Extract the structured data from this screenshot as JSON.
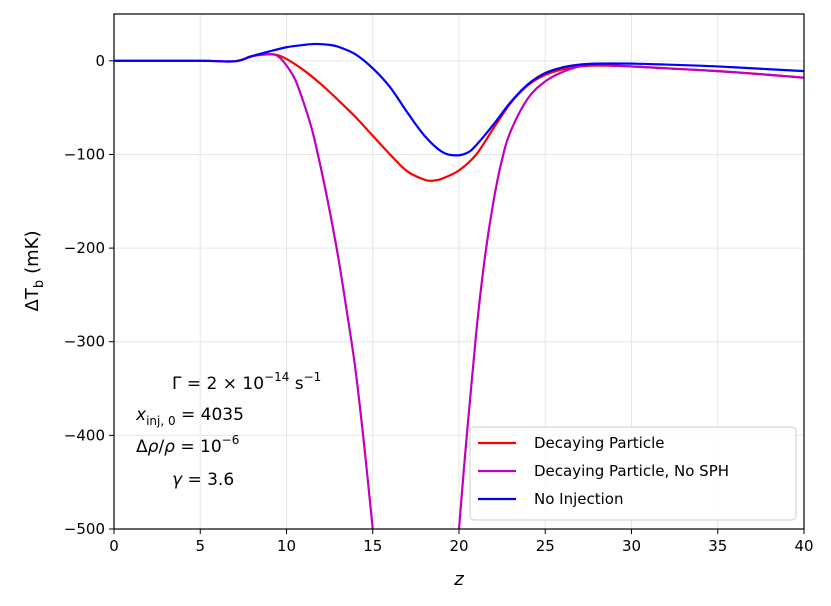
{
  "chart_data": {
    "type": "line",
    "title": "",
    "xlabel": "z",
    "ylabel_main": "ΔT",
    "ylabel_sub": "b",
    "ylabel_unit": "(mK)",
    "xlim": [
      0,
      40
    ],
    "ylim": [
      -500,
      50
    ],
    "xticks": [
      0,
      5,
      10,
      15,
      20,
      25,
      30,
      35,
      40
    ],
    "xtick_labels": [
      "0",
      "5",
      "10",
      "15",
      "20",
      "25",
      "30",
      "35",
      "40"
    ],
    "yticks": [
      0,
      -100,
      -200,
      -300,
      -400,
      -500
    ],
    "ytick_labels": [
      "0",
      "−100",
      "−200",
      "−300",
      "−400",
      "−500"
    ],
    "grid": true,
    "legend_position": "lower-right",
    "annotations": [
      "Γ = 2 × 10⁻¹⁴ s⁻¹",
      "xinj,0 = 4035",
      "Δρ/ρ = 10⁻⁶",
      "γ = 3.6"
    ],
    "series": [
      {
        "name": "Decaying Particle",
        "color": "#ff0000",
        "points": [
          [
            0,
            0
          ],
          [
            5,
            0
          ],
          [
            7,
            -0.5
          ],
          [
            8,
            5
          ],
          [
            9,
            7
          ],
          [
            9.5,
            6
          ],
          [
            10,
            2
          ],
          [
            11,
            -10
          ],
          [
            12,
            -25
          ],
          [
            13,
            -42
          ],
          [
            14,
            -60
          ],
          [
            15,
            -80
          ],
          [
            16,
            -100
          ],
          [
            17,
            -118
          ],
          [
            18,
            -127
          ],
          [
            18.5,
            -128
          ],
          [
            19,
            -126
          ],
          [
            20,
            -117
          ],
          [
            21,
            -100
          ],
          [
            22,
            -72
          ],
          [
            23,
            -45
          ],
          [
            24,
            -26
          ],
          [
            25,
            -15
          ],
          [
            26,
            -9
          ],
          [
            27,
            -6
          ],
          [
            28,
            -5
          ],
          [
            30,
            -6
          ],
          [
            32,
            -8
          ],
          [
            35,
            -11
          ],
          [
            38,
            -15
          ],
          [
            40,
            -18
          ]
        ]
      },
      {
        "name": "Decaying Particle, No SPH",
        "color": "#c000c0",
        "points": [
          [
            0,
            0
          ],
          [
            5,
            0
          ],
          [
            7,
            -0.5
          ],
          [
            8,
            5
          ],
          [
            9,
            7
          ],
          [
            9.5,
            5
          ],
          [
            10,
            -5
          ],
          [
            10.5,
            -20
          ],
          [
            11,
            -45
          ],
          [
            11.5,
            -75
          ],
          [
            12,
            -115
          ],
          [
            12.5,
            -160
          ],
          [
            13,
            -210
          ],
          [
            13.5,
            -268
          ],
          [
            14,
            -330
          ],
          [
            14.5,
            -410
          ],
          [
            15,
            -500
          ],
          [
            20,
            -500
          ],
          [
            20.5,
            -390
          ],
          [
            21,
            -290
          ],
          [
            21.5,
            -210
          ],
          [
            22,
            -150
          ],
          [
            22.5,
            -105
          ],
          [
            23,
            -75
          ],
          [
            24,
            -40
          ],
          [
            25,
            -22
          ],
          [
            26,
            -12
          ],
          [
            27,
            -6
          ],
          [
            28,
            -4
          ],
          [
            30,
            -6
          ],
          [
            32,
            -8
          ],
          [
            35,
            -11
          ],
          [
            38,
            -15
          ],
          [
            40,
            -18
          ]
        ]
      },
      {
        "name": "No Injection",
        "color": "#0000ff",
        "points": [
          [
            0,
            0
          ],
          [
            5,
            0
          ],
          [
            7,
            -0.5
          ],
          [
            8,
            5
          ],
          [
            9,
            10
          ],
          [
            10,
            14.5
          ],
          [
            11,
            17
          ],
          [
            11.7,
            18
          ],
          [
            12.5,
            17
          ],
          [
            13,
            15
          ],
          [
            14,
            7
          ],
          [
            15,
            -8
          ],
          [
            16,
            -28
          ],
          [
            17,
            -55
          ],
          [
            18,
            -80
          ],
          [
            19,
            -97
          ],
          [
            19.8,
            -101
          ],
          [
            20.5,
            -98
          ],
          [
            21,
            -90
          ],
          [
            22,
            -68
          ],
          [
            23,
            -44
          ],
          [
            24,
            -25
          ],
          [
            25,
            -13
          ],
          [
            26,
            -7
          ],
          [
            27,
            -4
          ],
          [
            28,
            -3
          ],
          [
            30,
            -3
          ],
          [
            32,
            -4
          ],
          [
            35,
            -6
          ],
          [
            38,
            -9
          ],
          [
            40,
            -11
          ]
        ]
      }
    ]
  }
}
